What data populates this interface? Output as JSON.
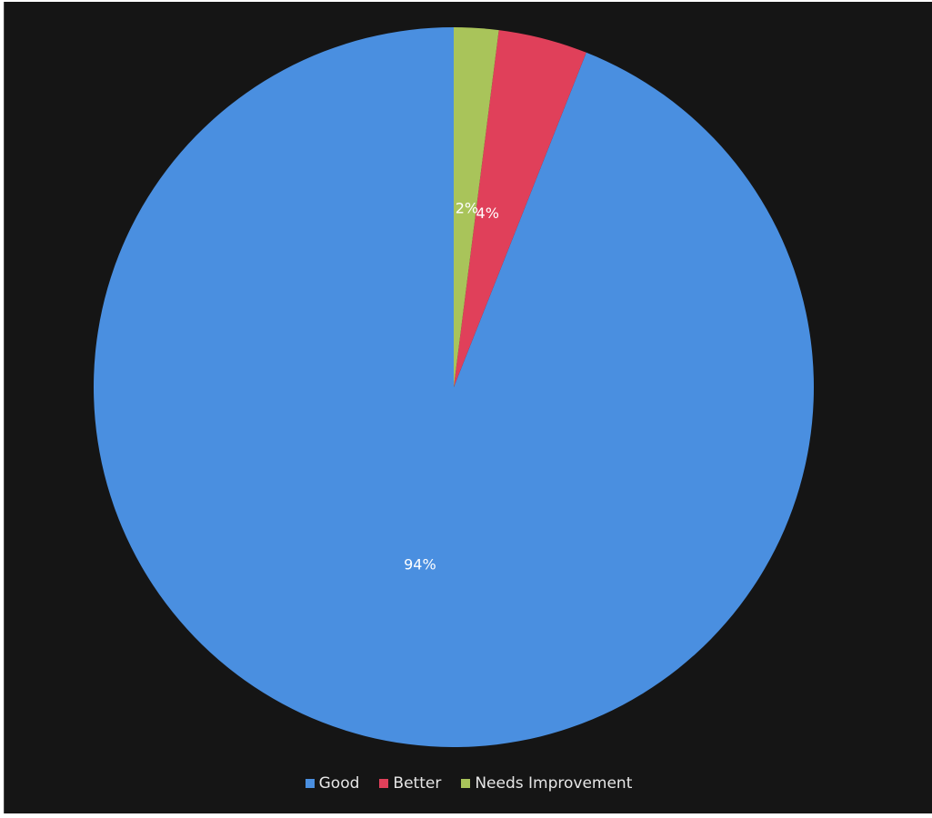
{
  "chart_data": {
    "type": "pie",
    "categories": [
      "Good",
      "Better",
      "Needs Improvement"
    ],
    "values": [
      94,
      4,
      2
    ],
    "data_labels": [
      "94%",
      "4%",
      "2%"
    ],
    "colors": [
      "#4a8fe0",
      "#e0405a",
      "#a9c45a"
    ],
    "background": "#151515",
    "legend_position": "bottom",
    "start_angle": "12 o'clock",
    "direction": "counter-clockwise"
  }
}
